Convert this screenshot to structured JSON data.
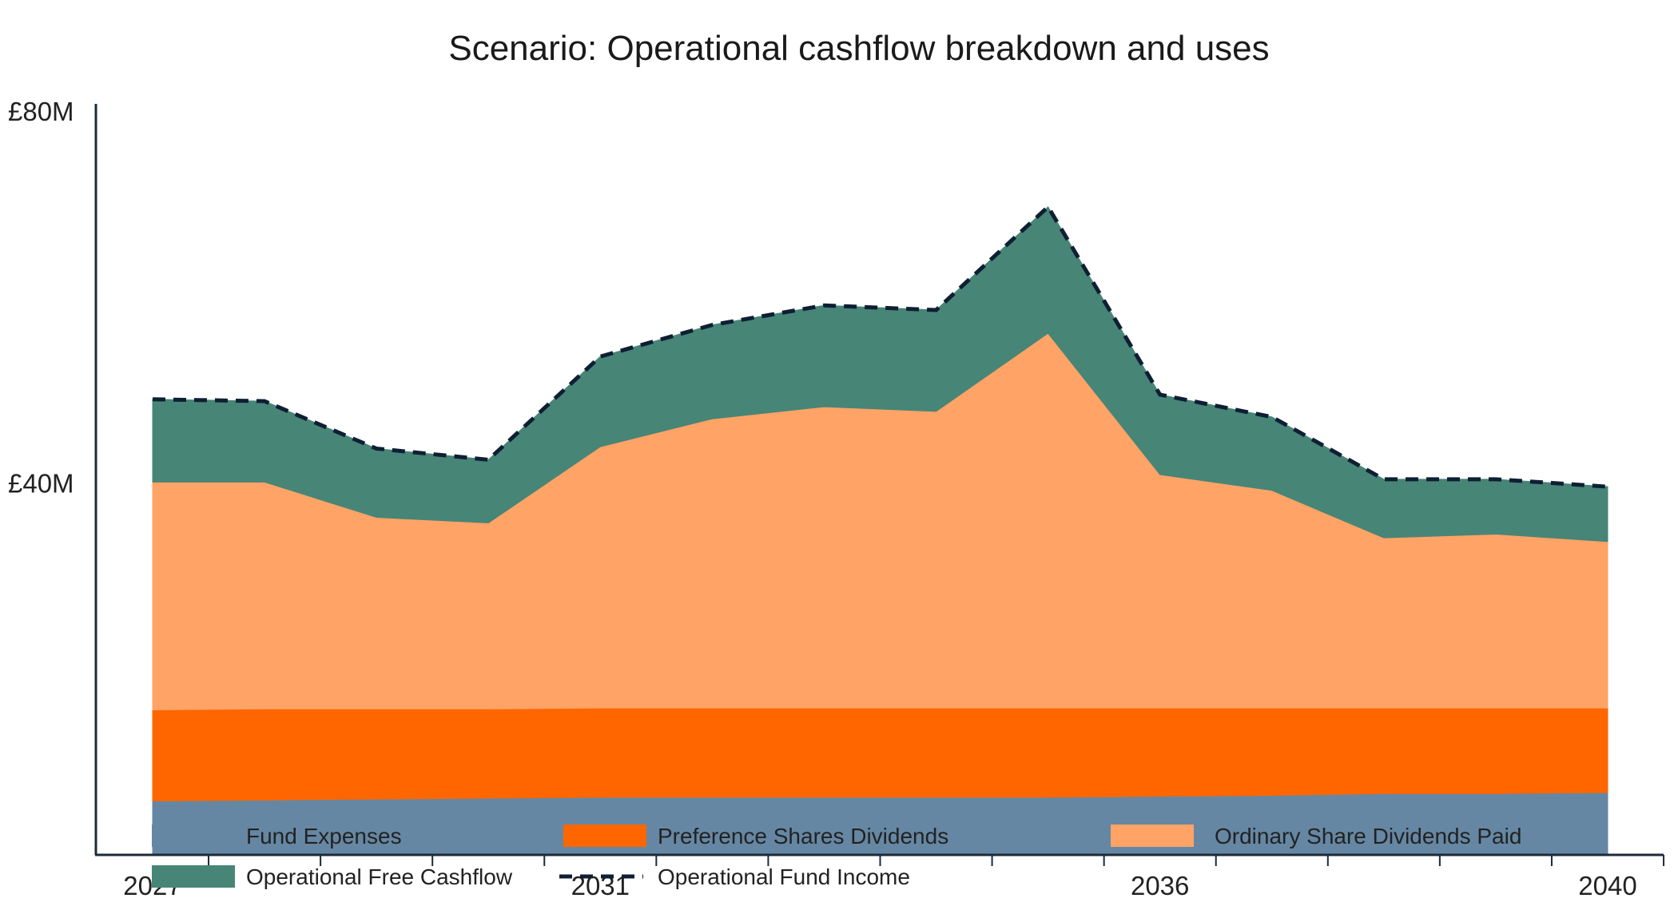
{
  "chart_data": {
    "type": "area",
    "stacked": true,
    "title": "Scenario: Operational cashflow breakdown and uses",
    "xlabel": "",
    "ylabel": "",
    "x": [
      2027,
      2028,
      2029,
      2030,
      2031,
      2032,
      2033,
      2034,
      2035,
      2036,
      2037,
      2038,
      2039,
      2040
    ],
    "x_tick_labels": [
      "2027",
      "2031",
      "2036",
      "2040"
    ],
    "x_tick_values": [
      2027,
      2031,
      2036,
      2040
    ],
    "y_tick_labels": [
      "£80M",
      "£40M"
    ],
    "y_tick_values": [
      80,
      40
    ],
    "ylim": [
      0,
      80
    ],
    "units": "£M",
    "grid": false,
    "legend_position": "bottom",
    "series": [
      {
        "name": "Fund Expenses",
        "color": "#6587a3",
        "kind": "area",
        "values": [
          5.8,
          5.9,
          6.0,
          6.1,
          6.2,
          6.2,
          6.2,
          6.2,
          6.2,
          6.3,
          6.4,
          6.6,
          6.6,
          6.7
        ]
      },
      {
        "name": "Preference Shares Dividends",
        "color": "#ff6600",
        "kind": "area",
        "values": [
          9.8,
          9.8,
          9.7,
          9.6,
          9.6,
          9.6,
          9.6,
          9.6,
          9.6,
          9.5,
          9.4,
          9.2,
          9.2,
          9.1
        ]
      },
      {
        "name": "Ordinary Share Dividends Paid",
        "color": "#ffa366",
        "kind": "area",
        "values": [
          24.5,
          24.4,
          20.6,
          20.0,
          28.1,
          31.1,
          32.4,
          31.9,
          40.3,
          25.1,
          23.4,
          18.3,
          18.7,
          17.9
        ]
      },
      {
        "name": "Operational Free Cashflow",
        "color": "#478577",
        "kind": "area",
        "values": [
          8.9,
          8.7,
          7.4,
          6.8,
          9.7,
          10.1,
          10.9,
          10.9,
          13.6,
          8.6,
          7.9,
          6.3,
          5.9,
          5.9
        ]
      },
      {
        "name": "Operational Fund Income",
        "color": "#0f1f33",
        "kind": "dashed-line",
        "values": [
          49.0,
          48.8,
          43.7,
          42.5,
          53.6,
          57.0,
          59.1,
          58.6,
          69.7,
          49.5,
          47.1,
          40.4,
          40.4,
          39.6
        ]
      }
    ]
  }
}
